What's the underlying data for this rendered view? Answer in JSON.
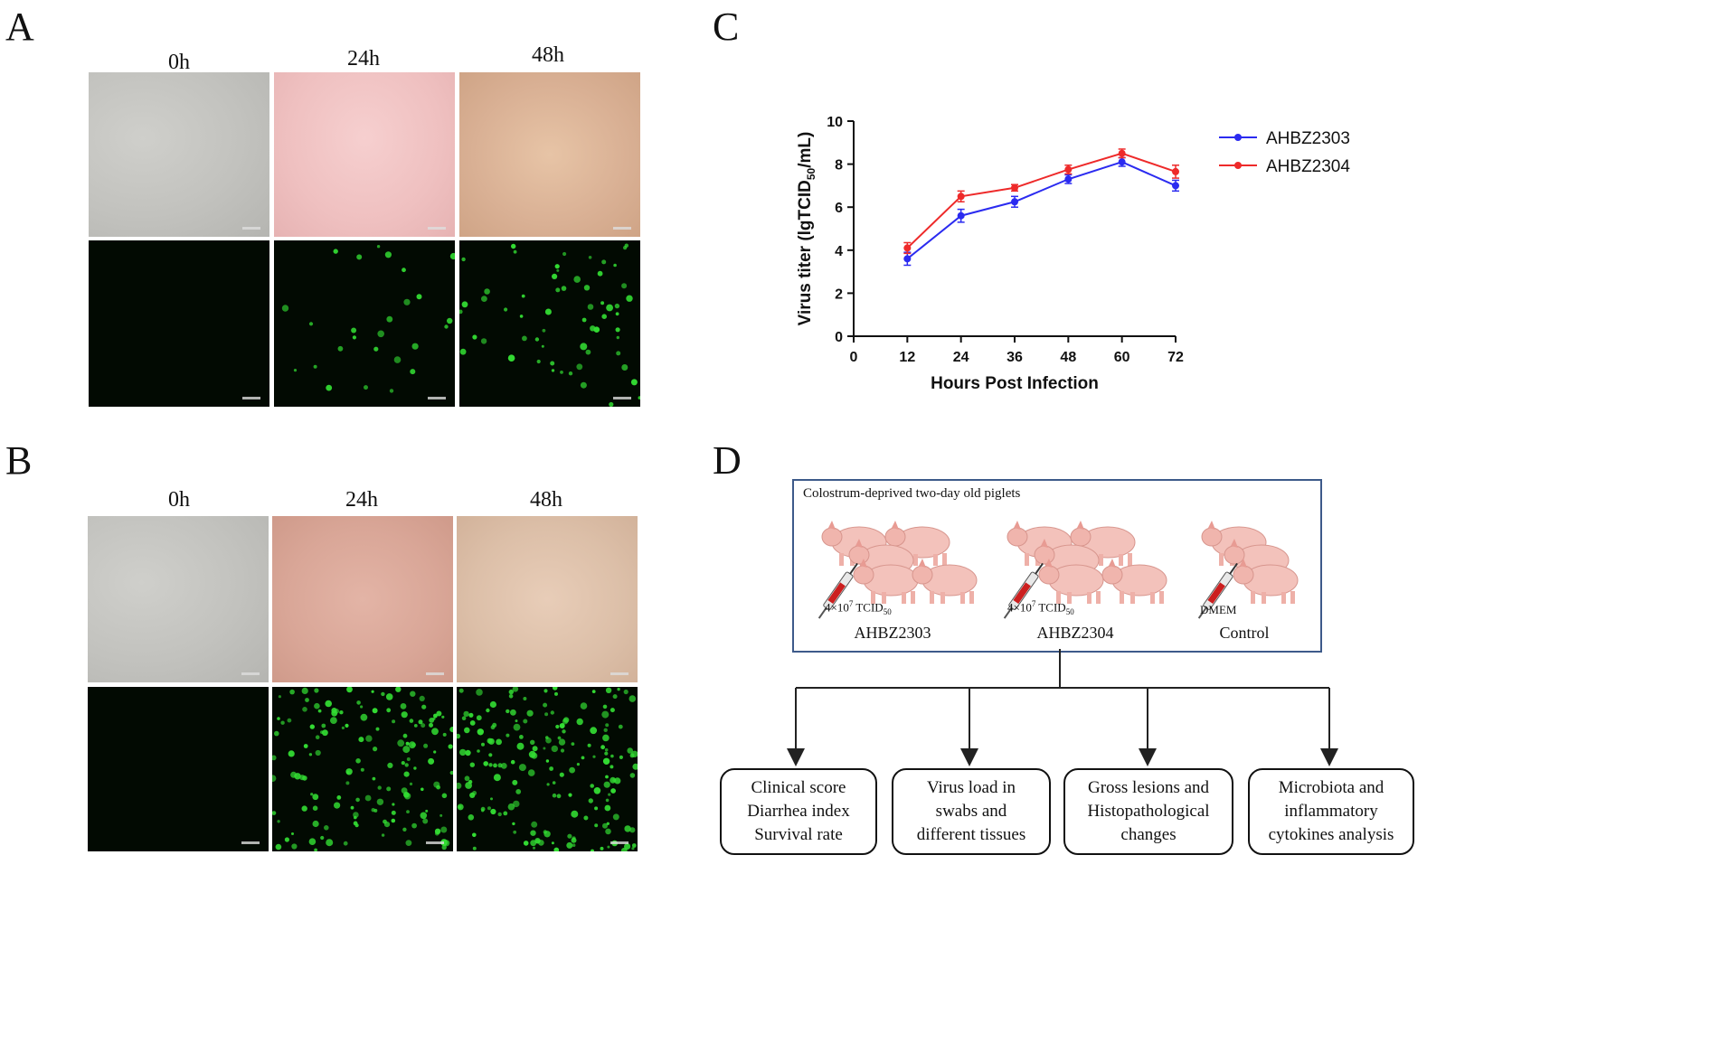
{
  "panels": {
    "A": {
      "letter": "A",
      "times": [
        "0h",
        "24h",
        "48h"
      ]
    },
    "B": {
      "letter": "B",
      "times": [
        "0h",
        "24h",
        "48h"
      ]
    },
    "C": {
      "letter": "C"
    },
    "D": {
      "letter": "D"
    }
  },
  "chart_data": {
    "type": "line",
    "xlabel": "Hours Post Infection",
    "ylabel_main": "Virus titer (lgTCID",
    "ylabel_sub": "50",
    "ylabel_end": "/mL)",
    "xlim": [
      0,
      72
    ],
    "ylim": [
      0,
      10
    ],
    "xticks": [
      0,
      12,
      24,
      36,
      48,
      60,
      72
    ],
    "yticks": [
      0,
      2,
      4,
      6,
      8,
      10
    ],
    "legend_position": "right",
    "series": [
      {
        "name": "AHBZ2303",
        "color": "#2b2bf0",
        "x": [
          12,
          24,
          36,
          48,
          60,
          72
        ],
        "values": [
          3.6,
          5.6,
          6.25,
          7.3,
          8.1,
          7.0
        ],
        "err": [
          0.3,
          0.3,
          0.25,
          0.2,
          0.2,
          0.25
        ]
      },
      {
        "name": "AHBZ2304",
        "color": "#ee2a2a",
        "x": [
          12,
          24,
          36,
          48,
          60,
          72
        ],
        "values": [
          4.1,
          6.5,
          6.9,
          7.75,
          8.5,
          7.65
        ],
        "err": [
          0.25,
          0.25,
          0.15,
          0.2,
          0.2,
          0.3
        ]
      }
    ]
  },
  "design": {
    "header": "Colostrum-deprived two-day old piglets",
    "groups": [
      {
        "dose": "4×10",
        "dose_exp": "7",
        "dose_unit": " TCID",
        "dose_sub": "50",
        "name": "AHBZ2303"
      },
      {
        "dose": "4×10",
        "dose_exp": "7",
        "dose_unit": " TCID",
        "dose_sub": "50",
        "name": "AHBZ2304"
      },
      {
        "dose": "DMEM",
        "name": "Control"
      }
    ],
    "outcomes": [
      [
        "Clinical score",
        "Diarrhea index",
        "Survival rate"
      ],
      [
        "Virus load in",
        "swabs and",
        "different tissues"
      ],
      [
        "Gross lesions and",
        "Histopathological",
        "changes"
      ],
      [
        "Microbiota and",
        "inflammatory",
        "cytokines analysis"
      ]
    ]
  }
}
